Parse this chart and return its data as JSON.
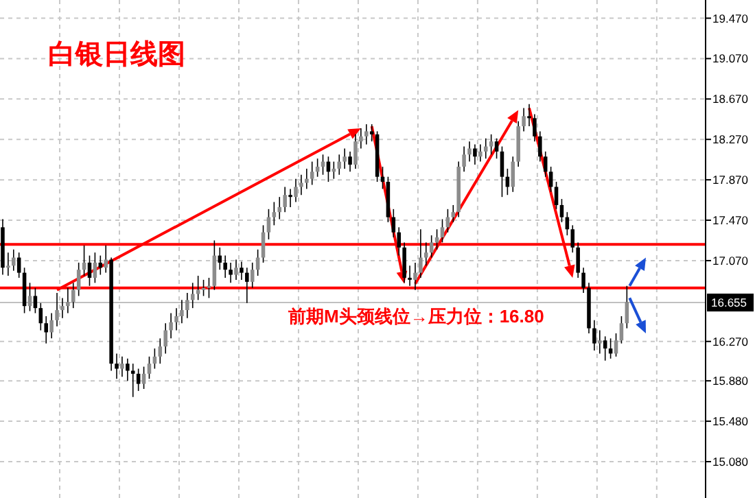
{
  "chart_data": {
    "type": "candlestick",
    "title": "白银日线图",
    "categories": [
      null,
      null,
      null,
      null,
      null,
      null,
      null,
      null,
      null,
      null,
      null,
      null,
      null,
      null,
      null,
      null,
      null,
      null,
      null,
      null,
      null,
      null,
      null,
      null,
      null,
      null,
      null,
      null,
      null,
      null,
      null,
      null,
      null,
      null,
      null,
      null,
      null,
      null,
      null,
      null,
      null,
      null,
      null,
      null,
      null,
      null,
      null,
      null,
      null,
      null,
      null,
      null,
      null,
      null,
      null,
      null,
      null,
      null,
      null,
      null,
      null,
      null,
      null,
      null,
      null,
      null,
      null,
      null,
      null,
      null,
      null,
      null,
      null,
      null,
      null,
      null,
      null,
      null,
      null,
      null,
      null,
      null,
      null,
      null,
      null,
      null,
      null,
      null,
      null,
      null,
      null,
      null,
      null,
      null,
      null,
      null,
      null,
      null,
      null,
      null,
      null,
      null,
      null,
      null,
      null,
      null,
      null,
      null,
      null,
      null,
      null,
      null,
      null,
      null,
      null,
      null,
      null,
      null,
      null,
      null,
      null,
      null,
      null,
      null,
      null,
      null,
      null,
      null,
      null,
      null
    ],
    "ohlc": [
      [
        17.4,
        17.48,
        16.93,
        17.0
      ],
      [
        17.0,
        17.15,
        16.92,
        17.02
      ],
      [
        17.02,
        17.18,
        16.97,
        17.1
      ],
      [
        17.1,
        17.15,
        16.9,
        16.95
      ],
      [
        16.95,
        17.0,
        16.55,
        16.62
      ],
      [
        16.62,
        16.85,
        16.57,
        16.72
      ],
      [
        16.72,
        16.8,
        16.55,
        16.6
      ],
      [
        16.6,
        16.65,
        16.38,
        16.45
      ],
      [
        16.45,
        16.52,
        16.25,
        16.36
      ],
      [
        16.36,
        16.55,
        16.3,
        16.48
      ],
      [
        16.48,
        16.75,
        16.42,
        16.58
      ],
      [
        16.58,
        16.7,
        16.5,
        16.62
      ],
      [
        16.62,
        16.8,
        16.55,
        16.66
      ],
      [
        16.66,
        16.85,
        16.6,
        16.78
      ],
      [
        16.78,
        17.05,
        16.72,
        16.98
      ],
      [
        16.98,
        17.22,
        16.92,
        17.05
      ],
      [
        17.05,
        17.12,
        16.82,
        16.9
      ],
      [
        16.9,
        17.15,
        16.85,
        17.05
      ],
      [
        17.05,
        17.12,
        16.93,
        17.0
      ],
      [
        17.0,
        17.22,
        16.95,
        17.08
      ],
      [
        17.08,
        17.1,
        15.98,
        16.05
      ],
      [
        16.05,
        16.15,
        15.9,
        16.0
      ],
      [
        16.0,
        16.12,
        15.92,
        16.05
      ],
      [
        16.05,
        16.1,
        15.88,
        15.98
      ],
      [
        15.98,
        16.05,
        15.72,
        15.95
      ],
      [
        15.95,
        16.0,
        15.78,
        15.85
      ],
      [
        15.85,
        16.02,
        15.8,
        15.95
      ],
      [
        15.95,
        16.12,
        15.9,
        16.05
      ],
      [
        16.05,
        16.2,
        16.0,
        16.12
      ],
      [
        16.12,
        16.3,
        16.05,
        16.22
      ],
      [
        16.22,
        16.45,
        16.15,
        16.38
      ],
      [
        16.38,
        16.55,
        16.3,
        16.46
      ],
      [
        16.46,
        16.6,
        16.38,
        16.52
      ],
      [
        16.52,
        16.68,
        16.45,
        16.58
      ],
      [
        16.58,
        16.75,
        16.5,
        16.68
      ],
      [
        16.68,
        16.85,
        16.6,
        16.74
      ],
      [
        16.74,
        16.92,
        16.68,
        16.78
      ],
      [
        16.78,
        16.88,
        16.72,
        16.8
      ],
      [
        16.8,
        16.9,
        16.7,
        16.82
      ],
      [
        16.82,
        17.27,
        16.78,
        17.12
      ],
      [
        17.12,
        17.2,
        16.98,
        17.05
      ],
      [
        17.05,
        17.12,
        16.9,
        16.98
      ],
      [
        16.98,
        17.05,
        16.85,
        16.93
      ],
      [
        16.93,
        17.08,
        16.88,
        17.0
      ],
      [
        17.0,
        17.06,
        16.88,
        16.95
      ],
      [
        16.95,
        17.0,
        16.65,
        16.86
      ],
      [
        16.86,
        17.05,
        16.8,
        16.98
      ],
      [
        16.98,
        17.18,
        16.92,
        17.1
      ],
      [
        17.1,
        17.42,
        17.05,
        17.35
      ],
      [
        17.35,
        17.58,
        17.28,
        17.5
      ],
      [
        17.5,
        17.65,
        17.42,
        17.55
      ],
      [
        17.55,
        17.7,
        17.48,
        17.6
      ],
      [
        17.6,
        17.8,
        17.55,
        17.72
      ],
      [
        17.72,
        17.78,
        17.6,
        17.7
      ],
      [
        17.7,
        17.88,
        17.65,
        17.8
      ],
      [
        17.8,
        17.92,
        17.72,
        17.84
      ],
      [
        17.84,
        17.98,
        17.78,
        17.88
      ],
      [
        17.88,
        18.05,
        17.82,
        17.95
      ],
      [
        17.95,
        18.08,
        17.9,
        18.0
      ],
      [
        18.0,
        18.12,
        17.92,
        18.05
      ],
      [
        18.05,
        18.1,
        17.85,
        17.95
      ],
      [
        17.95,
        18.05,
        17.88,
        17.98
      ],
      [
        17.98,
        18.12,
        17.92,
        18.05
      ],
      [
        18.05,
        18.18,
        17.98,
        18.1
      ],
      [
        18.1,
        18.15,
        17.95,
        18.02
      ],
      [
        18.02,
        18.32,
        17.98,
        18.25
      ],
      [
        18.25,
        18.38,
        18.18,
        18.3
      ],
      [
        18.3,
        18.42,
        18.22,
        18.35
      ],
      [
        18.35,
        18.42,
        18.25,
        18.32
      ],
      [
        18.32,
        18.35,
        17.85,
        17.9
      ],
      [
        17.9,
        18.0,
        17.78,
        17.85
      ],
      [
        17.85,
        17.9,
        17.45,
        17.5
      ],
      [
        17.5,
        17.58,
        17.3,
        17.35
      ],
      [
        17.35,
        17.4,
        17.12,
        17.2
      ],
      [
        17.2,
        17.25,
        16.85,
        16.9
      ],
      [
        16.9,
        17.02,
        16.82,
        16.88
      ],
      [
        16.88,
        17.05,
        16.78,
        16.95
      ],
      [
        16.95,
        17.38,
        16.9,
        17.1
      ],
      [
        17.1,
        17.25,
        17.02,
        17.15
      ],
      [
        17.15,
        17.32,
        17.1,
        17.25
      ],
      [
        17.25,
        17.38,
        17.18,
        17.3
      ],
      [
        17.3,
        17.48,
        17.25,
        17.4
      ],
      [
        17.4,
        17.58,
        17.35,
        17.5
      ],
      [
        17.5,
        17.62,
        17.45,
        17.55
      ],
      [
        17.55,
        18.05,
        17.5,
        18.0
      ],
      [
        18.0,
        18.2,
        17.95,
        18.12
      ],
      [
        18.12,
        18.25,
        18.05,
        18.18
      ],
      [
        18.18,
        18.22,
        18.02,
        18.1
      ],
      [
        18.1,
        18.22,
        18.05,
        18.15
      ],
      [
        18.15,
        18.28,
        18.08,
        18.2
      ],
      [
        18.2,
        18.32,
        18.12,
        18.25
      ],
      [
        18.25,
        18.28,
        18.08,
        18.15
      ],
      [
        18.15,
        18.2,
        17.7,
        17.9
      ],
      [
        17.9,
        17.98,
        17.72,
        17.8
      ],
      [
        17.8,
        18.1,
        17.75,
        18.05
      ],
      [
        18.05,
        18.45,
        18.0,
        18.4
      ],
      [
        18.4,
        18.58,
        18.35,
        18.5
      ],
      [
        18.5,
        18.62,
        18.4,
        18.48
      ],
      [
        18.48,
        18.52,
        18.25,
        18.3
      ],
      [
        18.3,
        18.35,
        18.05,
        18.1
      ],
      [
        18.1,
        18.15,
        17.9,
        17.95
      ],
      [
        17.95,
        18.0,
        17.75,
        17.8
      ],
      [
        17.8,
        17.85,
        17.58,
        17.62
      ],
      [
        17.62,
        17.68,
        17.45,
        17.5
      ],
      [
        17.5,
        17.55,
        17.32,
        17.38
      ],
      [
        17.38,
        17.42,
        17.15,
        17.2
      ],
      [
        17.2,
        17.25,
        16.9,
        16.95
      ],
      [
        16.95,
        17.0,
        16.75,
        16.8
      ],
      [
        16.8,
        16.85,
        16.35,
        16.4
      ],
      [
        16.4,
        16.48,
        16.18,
        16.25
      ],
      [
        16.25,
        16.38,
        16.15,
        16.28
      ],
      [
        16.28,
        16.32,
        16.08,
        16.2
      ],
      [
        16.2,
        16.3,
        16.1,
        16.15
      ],
      [
        16.15,
        16.35,
        16.12,
        16.28
      ],
      [
        16.28,
        16.52,
        16.25,
        16.45
      ],
      [
        16.45,
        16.82,
        16.4,
        16.66
      ],
      null,
      null,
      null,
      null,
      null,
      null,
      null,
      null,
      null,
      null,
      null,
      null,
      null,
      null
    ],
    "ylim": [
      14.72,
      19.65
    ],
    "yticks": [
      {
        "value": 19.47,
        "label": "19.470"
      },
      {
        "value": 19.07,
        "label": "19.070"
      },
      {
        "value": 18.67,
        "label": "18.670"
      },
      {
        "value": 18.27,
        "label": "18.270"
      },
      {
        "value": 17.87,
        "label": "17.870"
      },
      {
        "value": 17.47,
        "label": "17.470"
      },
      {
        "value": 17.07,
        "label": "17.070"
      },
      {
        "value": 16.27,
        "label": "16.270"
      },
      {
        "value": 15.88,
        "label": "15.880"
      },
      {
        "value": 15.48,
        "label": "15.480"
      },
      {
        "value": 15.08,
        "label": "15.080"
      }
    ],
    "ref_lines": [
      {
        "axis": "y",
        "value": 17.23,
        "color": "#ff0000"
      },
      {
        "axis": "y",
        "value": 16.8,
        "label": "前期M头颈线位→压力位：16.80",
        "color": "#ff0000"
      },
      {
        "axis": "y",
        "value": 16.655,
        "label": "16.655",
        "color": "#c0c0c0"
      }
    ],
    "grid": true,
    "tick_labels": "y"
  }
}
